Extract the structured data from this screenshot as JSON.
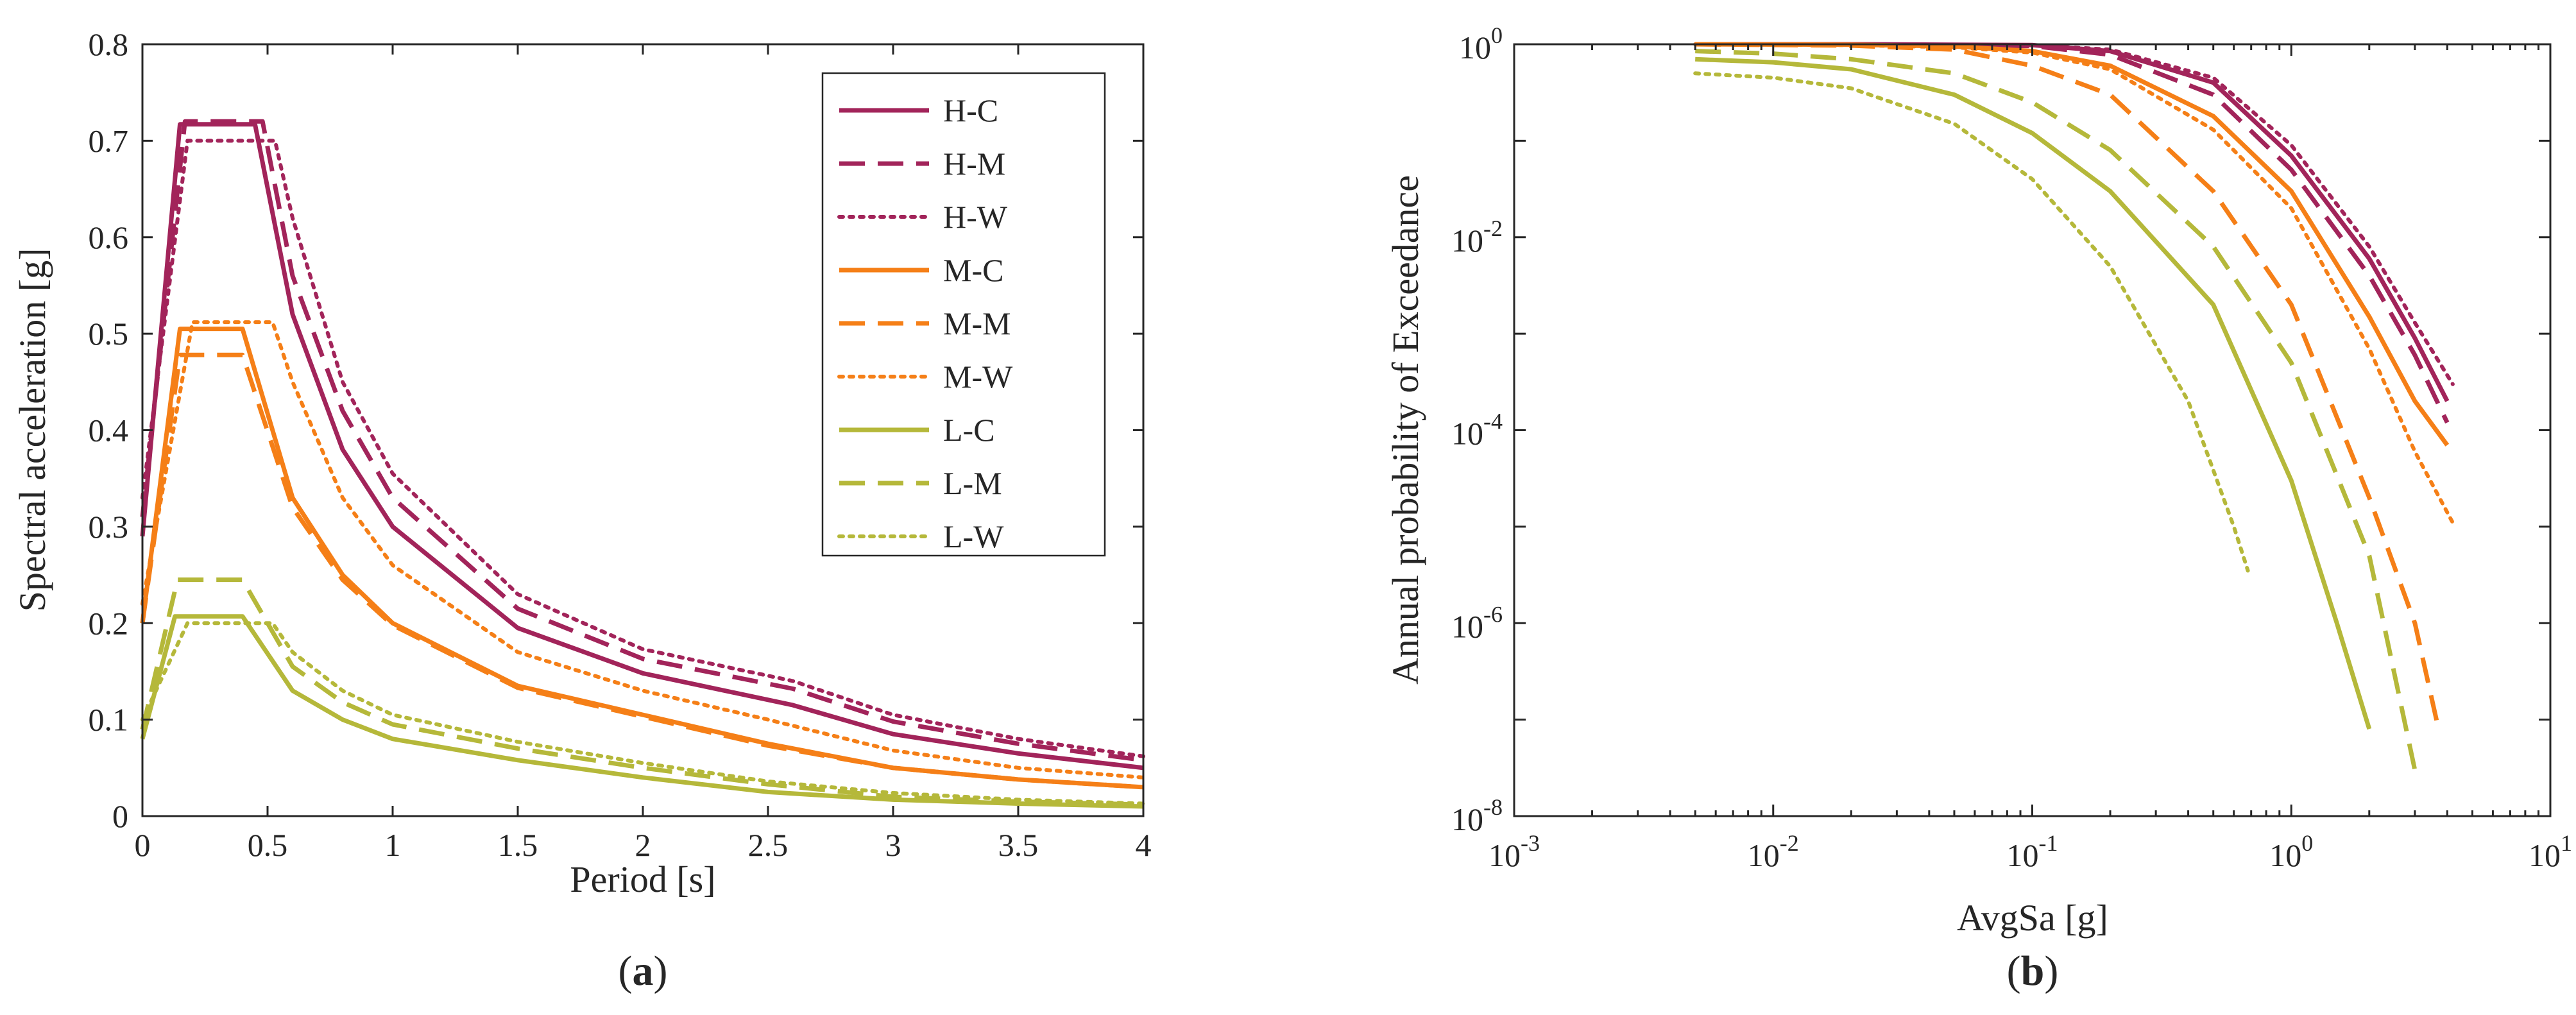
{
  "figure": {
    "panel_labels": [
      {
        "open": "(",
        "letter": "a",
        "close": ")"
      },
      {
        "open": "(",
        "letter": "b",
        "close": ")"
      }
    ]
  },
  "legend_entries": [
    "H-C",
    "H-M",
    "H-W",
    "M-C",
    "M-M",
    "M-W",
    "L-C",
    "L-M",
    "L-W"
  ],
  "colors": {
    "H": "#a2245a",
    "M": "#f57f17",
    "L": "#b5b83a",
    "axis": "#262626"
  },
  "chart_data": [
    {
      "type": "line",
      "panel": "a",
      "xlabel": "Period [s]",
      "ylabel": "Spectral acceleration [g]",
      "xlim": [
        0,
        4
      ],
      "ylim": [
        0,
        0.8
      ],
      "xticks": [
        0,
        0.5,
        1,
        1.5,
        2,
        2.5,
        3,
        3.5,
        4
      ],
      "xtick_labels": [
        "0",
        "0.5",
        "1",
        "1.5",
        "2",
        "2.5",
        "3",
        "3.5",
        "4"
      ],
      "yticks": [
        0,
        0.1,
        0.2,
        0.3,
        0.4,
        0.5,
        0.6,
        0.7,
        0.8
      ],
      "ytick_labels": [
        "0",
        "0.1",
        "0.2",
        "0.3",
        "0.4",
        "0.5",
        "0.6",
        "0.7",
        "0.8"
      ],
      "legend_location": "top-right",
      "series": [
        {
          "name": "H-C",
          "group": "H",
          "style": "solid",
          "x": [
            0,
            0.15,
            0.45,
            0.6,
            0.8,
            1.0,
            1.5,
            2.0,
            2.6,
            3.0,
            3.5,
            4.0
          ],
          "y": [
            0.29,
            0.717,
            0.717,
            0.52,
            0.38,
            0.3,
            0.195,
            0.148,
            0.115,
            0.085,
            0.065,
            0.05
          ]
        },
        {
          "name": "H-M",
          "group": "H",
          "style": "dashed",
          "x": [
            0,
            0.17,
            0.48,
            0.6,
            0.8,
            1.0,
            1.5,
            2.0,
            2.6,
            3.0,
            3.5,
            4.0
          ],
          "y": [
            0.31,
            0.72,
            0.72,
            0.56,
            0.42,
            0.33,
            0.215,
            0.163,
            0.132,
            0.098,
            0.075,
            0.058
          ]
        },
        {
          "name": "H-W",
          "group": "H",
          "style": "dotted",
          "x": [
            0,
            0.18,
            0.53,
            0.6,
            0.8,
            1.0,
            1.5,
            2.0,
            2.6,
            3.0,
            3.5,
            4.0
          ],
          "y": [
            0.33,
            0.7,
            0.7,
            0.62,
            0.45,
            0.355,
            0.23,
            0.173,
            0.14,
            0.105,
            0.08,
            0.062
          ]
        },
        {
          "name": "M-C",
          "group": "M",
          "style": "solid",
          "x": [
            0,
            0.15,
            0.4,
            0.6,
            0.8,
            1.0,
            1.5,
            2.0,
            2.5,
            3.0,
            3.5,
            4.0
          ],
          "y": [
            0.2,
            0.505,
            0.505,
            0.33,
            0.25,
            0.2,
            0.135,
            0.105,
            0.075,
            0.05,
            0.038,
            0.03
          ]
        },
        {
          "name": "M-M",
          "group": "M",
          "style": "dashed",
          "x": [
            0,
            0.15,
            0.4,
            0.6,
            0.8,
            1.0,
            1.5,
            2.0,
            2.5,
            3.0,
            3.5,
            4.0
          ],
          "y": [
            0.2,
            0.478,
            0.478,
            0.32,
            0.245,
            0.198,
            0.133,
            0.103,
            0.073,
            0.05,
            0.038,
            0.03
          ]
        },
        {
          "name": "M-W",
          "group": "M",
          "style": "dotted",
          "x": [
            0,
            0.2,
            0.52,
            0.6,
            0.8,
            1.0,
            1.5,
            2.0,
            2.5,
            3.0,
            3.5,
            4.0
          ],
          "y": [
            0.22,
            0.512,
            0.512,
            0.45,
            0.33,
            0.26,
            0.17,
            0.13,
            0.1,
            0.068,
            0.05,
            0.04
          ]
        },
        {
          "name": "L-C",
          "group": "L",
          "style": "solid",
          "x": [
            0,
            0.13,
            0.4,
            0.6,
            0.8,
            1.0,
            1.5,
            2.0,
            2.5,
            3.0,
            3.5,
            4.0
          ],
          "y": [
            0.08,
            0.207,
            0.207,
            0.13,
            0.1,
            0.08,
            0.058,
            0.04,
            0.025,
            0.017,
            0.013,
            0.01
          ]
        },
        {
          "name": "L-M",
          "group": "L",
          "style": "dashed",
          "x": [
            0,
            0.14,
            0.4,
            0.6,
            0.8,
            1.0,
            1.5,
            2.0,
            2.5,
            3.0,
            3.5,
            4.0
          ],
          "y": [
            0.09,
            0.245,
            0.245,
            0.155,
            0.118,
            0.095,
            0.07,
            0.05,
            0.033,
            0.02,
            0.015,
            0.012
          ]
        },
        {
          "name": "L-W",
          "group": "L",
          "style": "dotted",
          "x": [
            0,
            0.18,
            0.52,
            0.6,
            0.8,
            1.0,
            1.5,
            2.0,
            2.5,
            3.0,
            3.5,
            4.0
          ],
          "y": [
            0.1,
            0.2,
            0.2,
            0.17,
            0.13,
            0.105,
            0.077,
            0.055,
            0.036,
            0.024,
            0.017,
            0.013
          ]
        }
      ]
    },
    {
      "type": "line",
      "panel": "b",
      "xscale": "log",
      "yscale": "log",
      "xlabel": "AvgSa [g]",
      "ylabel": "Annual probability of Exceedance",
      "xlim": [
        0.001,
        10
      ],
      "ylim": [
        1e-08,
        1
      ],
      "xticks": [
        0.001,
        0.01,
        0.1,
        1,
        10
      ],
      "xtick_labels": [
        {
          "base": "10",
          "exp": "-3"
        },
        {
          "base": "10",
          "exp": "-2"
        },
        {
          "base": "10",
          "exp": "-1"
        },
        {
          "base": "10",
          "exp": "0"
        },
        {
          "base": "10",
          "exp": "1"
        }
      ],
      "yticks": [
        1e-08,
        1e-06,
        0.0001,
        0.01,
        1
      ],
      "ytick_labels": [
        {
          "base": "10",
          "exp": "-8"
        },
        {
          "base": "10",
          "exp": "-6"
        },
        {
          "base": "10",
          "exp": "-4"
        },
        {
          "base": "10",
          "exp": "-2"
        },
        {
          "base": "10",
          "exp": "0"
        }
      ],
      "series": [
        {
          "name": "H-C",
          "group": "H",
          "style": "solid",
          "x": [
            0.005,
            0.02,
            0.1,
            0.2,
            0.5,
            1,
            2,
            3,
            4
          ],
          "y": [
            1,
            1,
            0.98,
            0.85,
            0.4,
            0.07,
            0.006,
            0.0009,
            0.0002
          ]
        },
        {
          "name": "H-M",
          "group": "H",
          "style": "dashed",
          "x": [
            0.005,
            0.02,
            0.1,
            0.2,
            0.5,
            1,
            2,
            3,
            4
          ],
          "y": [
            1,
            1,
            0.96,
            0.78,
            0.3,
            0.05,
            0.004,
            0.0006,
            0.00012
          ]
        },
        {
          "name": "H-W",
          "group": "H",
          "style": "dotted",
          "x": [
            0.005,
            0.02,
            0.1,
            0.2,
            0.5,
            1,
            2,
            3,
            4.2
          ],
          "y": [
            1,
            1,
            0.98,
            0.88,
            0.45,
            0.09,
            0.008,
            0.0013,
            0.0003
          ]
        },
        {
          "name": "M-C",
          "group": "M",
          "style": "solid",
          "x": [
            0.005,
            0.02,
            0.05,
            0.1,
            0.2,
            0.5,
            1,
            2,
            3,
            4
          ],
          "y": [
            1,
            0.99,
            0.95,
            0.85,
            0.6,
            0.18,
            0.03,
            0.0015,
            0.0002,
            7e-05
          ]
        },
        {
          "name": "M-M",
          "group": "M",
          "style": "dashed",
          "x": [
            0.005,
            0.02,
            0.05,
            0.1,
            0.2,
            0.5,
            1,
            2,
            3,
            3.7
          ],
          "y": [
            1,
            0.97,
            0.88,
            0.6,
            0.3,
            0.03,
            0.002,
            2e-05,
            1e-06,
            8e-08
          ]
        },
        {
          "name": "M-W",
          "group": "M",
          "style": "dotted",
          "x": [
            0.005,
            0.02,
            0.05,
            0.1,
            0.2,
            0.5,
            1,
            2,
            3,
            4.2
          ],
          "y": [
            1,
            0.98,
            0.93,
            0.82,
            0.55,
            0.13,
            0.02,
            0.0007,
            6e-05,
            1.1e-05
          ]
        },
        {
          "name": "L-C",
          "group": "L",
          "style": "solid",
          "x": [
            0.005,
            0.01,
            0.02,
            0.05,
            0.1,
            0.2,
            0.5,
            1,
            1.5,
            2
          ],
          "y": [
            0.7,
            0.65,
            0.55,
            0.3,
            0.12,
            0.03,
            0.002,
            3e-05,
            1e-06,
            8e-08
          ]
        },
        {
          "name": "L-M",
          "group": "L",
          "style": "dashed",
          "x": [
            0.005,
            0.01,
            0.02,
            0.05,
            0.1,
            0.2,
            0.5,
            1,
            2,
            3
          ],
          "y": [
            0.85,
            0.8,
            0.7,
            0.5,
            0.25,
            0.08,
            0.008,
            0.0005,
            5e-06,
            3e-08
          ]
        },
        {
          "name": "L-W",
          "group": "L",
          "style": "dotted",
          "x": [
            0.005,
            0.01,
            0.02,
            0.05,
            0.1,
            0.2,
            0.4,
            0.6,
            0.68
          ],
          "y": [
            0.5,
            0.45,
            0.35,
            0.15,
            0.04,
            0.005,
            0.0002,
            1e-05,
            3.5e-06
          ]
        }
      ]
    }
  ]
}
